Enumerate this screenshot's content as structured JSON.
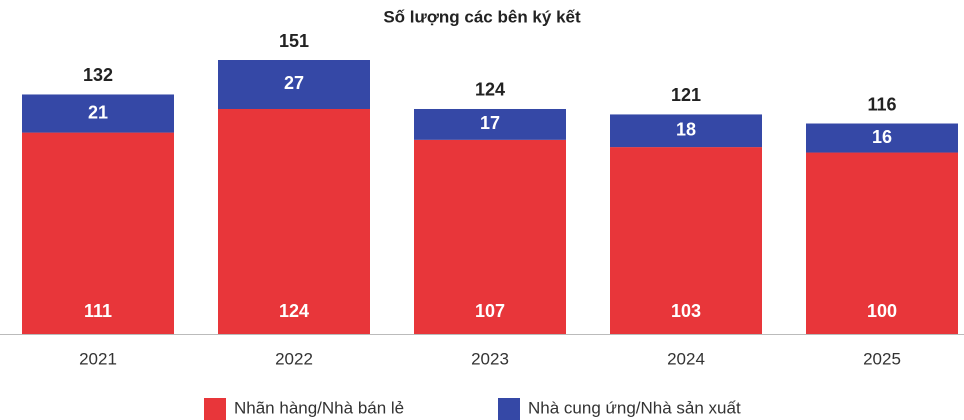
{
  "chart_data": {
    "type": "stacked_bar",
    "title": "Số lượng các bên ký kết",
    "categories": [
      "2021",
      "2022",
      "2023",
      "2024",
      "2025"
    ],
    "series": [
      {
        "name": "Nhãn hàng/Nhà bán lẻ",
        "color": "#e8363a",
        "values": [
          111,
          124,
          107,
          103,
          100
        ]
      },
      {
        "name": "Nhà cung ứng/Nhà sản xuất",
        "color": "#3548a6",
        "values": [
          21,
          27,
          17,
          18,
          16
        ]
      }
    ],
    "totals": [
      132,
      151,
      124,
      121,
      116
    ]
  }
}
